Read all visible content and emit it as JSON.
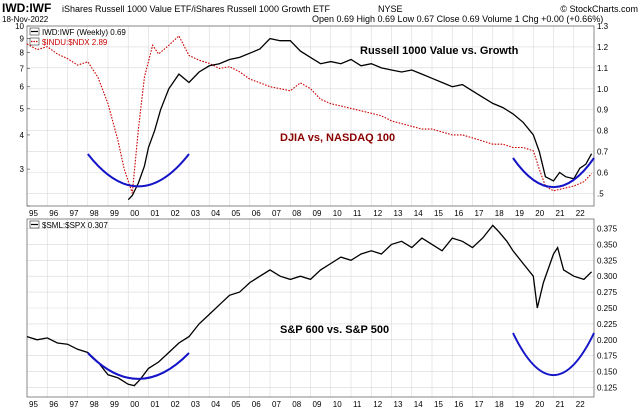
{
  "header": {
    "symbol": "IWD:IWF",
    "description": "iShares Russell 1000 Value ETF/iShares Russell 1000 Growth ETF",
    "exchange": "NYSE",
    "credit": "© StockCharts.com",
    "date": "18-Nov-2022",
    "ohlc": "Open 0.69  High 0.69  Low 0.67  Close 0.69  Volume 1  Chg +0.00 (+0.66%)"
  },
  "x_years": [
    "95",
    "96",
    "97",
    "98",
    "99",
    "00",
    "01",
    "02",
    "03",
    "04",
    "05",
    "06",
    "07",
    "08",
    "09",
    "10",
    "11",
    "12",
    "13",
    "14",
    "15",
    "16",
    "17",
    "18",
    "19",
    "20",
    "21",
    "22"
  ],
  "chart_data": [
    {
      "type": "line",
      "title": "Russell 1000 Value vs. Growth",
      "scale": "log",
      "legend": [
        {
          "label": "IWD:IWF (Weekly) 0.69",
          "color": "#000000",
          "style": "solid"
        },
        {
          "label": "$INDU:$NDX 2.89",
          "color": "#cc0000",
          "style": "dotted"
        }
      ],
      "left_axis": {
        "ylim": [
          2.2,
          10
        ],
        "ticks": [
          2.2,
          3,
          4,
          5,
          6,
          7,
          8,
          9,
          10
        ],
        "tick_labels": [
          "",
          "3",
          "4",
          "5",
          "6",
          "7",
          "8",
          "9",
          "10"
        ]
      },
      "right_axis": {
        "ylim": [
          0.44,
          1.3
        ],
        "ticks": [
          0.5,
          0.6,
          0.7,
          0.8,
          0.9,
          1.0,
          1.1,
          1.2,
          1.3
        ],
        "tick_labels": [
          ".5",
          "0.6",
          "0.7",
          "0.8",
          "0.9",
          "1.0",
          "1.1",
          "1.2",
          "1.3"
        ]
      },
      "series": [
        {
          "name": "IWD:IWF",
          "axis": "right",
          "x": [
            2000.0,
            2000.2,
            2000.5,
            2000.8,
            2001.0,
            2001.3,
            2001.6,
            2002.0,
            2002.5,
            2003.0,
            2003.5,
            2004.0,
            2004.5,
            2005.0,
            2005.5,
            2006.0,
            2006.5,
            2007.0,
            2007.5,
            2008.0,
            2008.5,
            2009.0,
            2009.5,
            2010.0,
            2010.5,
            2011.0,
            2011.5,
            2012.0,
            2012.5,
            2013.0,
            2013.5,
            2014.0,
            2014.5,
            2015.0,
            2015.5,
            2016.0,
            2016.5,
            2017.0,
            2017.5,
            2018.0,
            2018.5,
            2019.0,
            2019.5,
            2020.0,
            2020.3,
            2020.6,
            2021.0,
            2021.3,
            2021.6,
            2022.0,
            2022.3,
            2022.6,
            2022.88
          ],
          "values": [
            0.47,
            0.49,
            0.55,
            0.63,
            0.72,
            0.8,
            0.9,
            1.0,
            1.07,
            1.03,
            1.08,
            1.11,
            1.12,
            1.14,
            1.15,
            1.17,
            1.19,
            1.24,
            1.23,
            1.23,
            1.18,
            1.15,
            1.12,
            1.13,
            1.12,
            1.14,
            1.11,
            1.12,
            1.1,
            1.09,
            1.08,
            1.09,
            1.07,
            1.05,
            1.03,
            1.01,
            1.02,
            0.99,
            0.96,
            0.93,
            0.91,
            0.88,
            0.84,
            0.78,
            0.7,
            0.58,
            0.56,
            0.6,
            0.58,
            0.57,
            0.62,
            0.64,
            0.69
          ]
        },
        {
          "name": "$INDU:$NDX",
          "axis": "left",
          "x": [
            1995.0,
            1995.5,
            1996.0,
            1996.5,
            1997.0,
            1997.5,
            1998.0,
            1998.5,
            1999.0,
            1999.5,
            1999.8,
            2000.2,
            2000.5,
            2000.8,
            2001.2,
            2001.5,
            2002.0,
            2002.5,
            2003.0,
            2003.5,
            2004.0,
            2004.5,
            2005.0,
            2005.5,
            2006.0,
            2006.5,
            2007.0,
            2007.5,
            2008.0,
            2008.5,
            2009.0,
            2009.5,
            2010.0,
            2010.5,
            2011.0,
            2011.5,
            2012.0,
            2012.5,
            2013.0,
            2013.5,
            2014.0,
            2014.5,
            2015.0,
            2015.5,
            2016.0,
            2016.5,
            2017.0,
            2017.5,
            2018.0,
            2018.5,
            2019.0,
            2019.5,
            2020.0,
            2020.3,
            2020.6,
            2021.0,
            2021.5,
            2022.0,
            2022.5,
            2022.88
          ],
          "values": [
            8.6,
            8.2,
            8.4,
            7.9,
            7.6,
            7.2,
            7.4,
            6.5,
            5.2,
            3.8,
            3.0,
            2.45,
            4.2,
            6.5,
            8.5,
            7.9,
            8.5,
            9.2,
            7.8,
            7.5,
            7.3,
            7.0,
            7.1,
            6.8,
            6.4,
            6.2,
            6.0,
            5.9,
            5.8,
            6.2,
            5.9,
            5.4,
            5.2,
            5.1,
            5.0,
            4.9,
            4.8,
            4.7,
            4.5,
            4.4,
            4.3,
            4.2,
            4.2,
            4.1,
            4.0,
            4.0,
            3.9,
            3.8,
            3.7,
            3.7,
            3.6,
            3.6,
            3.5,
            3.0,
            2.6,
            2.5,
            2.55,
            2.6,
            2.7,
            2.89
          ]
        }
      ],
      "annotations": [
        {
          "text": "Russell 1000 Value vs. Growth",
          "color": "#000000"
        },
        {
          "text": "DJIA vs, NASDAQ 100",
          "color": "#8b0000"
        }
      ],
      "highlights": [
        {
          "shape": "U",
          "x_range": [
            1998.0,
            2003.0
          ],
          "color": "#1414c8"
        },
        {
          "shape": "U",
          "x_range": [
            2019.0,
            2023.0
          ],
          "color": "#1414c8"
        }
      ]
    },
    {
      "type": "line",
      "title": "S&P 600 vs. S&P 500",
      "legend": [
        {
          "label": "$SML:$SPX 0.307",
          "color": "#000000",
          "style": "solid"
        }
      ],
      "right_axis": {
        "ylim": [
          0.11,
          0.39
        ],
        "ticks": [
          0.125,
          0.15,
          0.175,
          0.2,
          0.225,
          0.25,
          0.275,
          0.3,
          0.325,
          0.35,
          0.375
        ],
        "tick_labels": [
          "0.125",
          "0.150",
          "0.175",
          "0.200",
          "0.225",
          "0.250",
          "0.275",
          "0.300",
          "0.325",
          "0.350",
          "0.375"
        ]
      },
      "series": [
        {
          "name": "$SML:$SPX",
          "axis": "right",
          "x": [
            1995.0,
            1995.5,
            1996.0,
            1996.5,
            1997.0,
            1997.5,
            1998.0,
            1998.5,
            1999.0,
            1999.5,
            2000.0,
            2000.3,
            2000.6,
            2001.0,
            2001.5,
            2002.0,
            2002.5,
            2003.0,
            2003.5,
            2004.0,
            2004.5,
            2005.0,
            2005.5,
            2006.0,
            2006.5,
            2007.0,
            2007.5,
            2008.0,
            2008.5,
            2009.0,
            2009.5,
            2010.0,
            2010.5,
            2011.0,
            2011.5,
            2012.0,
            2012.5,
            2013.0,
            2013.5,
            2014.0,
            2014.5,
            2015.0,
            2015.5,
            2016.0,
            2016.5,
            2017.0,
            2017.5,
            2018.0,
            2018.3,
            2018.7,
            2019.0,
            2019.5,
            2020.0,
            2020.2,
            2020.5,
            2021.0,
            2021.2,
            2021.5,
            2022.0,
            2022.5,
            2022.88
          ],
          "values": [
            0.205,
            0.2,
            0.203,
            0.195,
            0.193,
            0.185,
            0.18,
            0.165,
            0.145,
            0.14,
            0.13,
            0.128,
            0.138,
            0.155,
            0.165,
            0.18,
            0.195,
            0.205,
            0.225,
            0.24,
            0.255,
            0.27,
            0.275,
            0.29,
            0.3,
            0.31,
            0.3,
            0.295,
            0.3,
            0.295,
            0.31,
            0.32,
            0.33,
            0.325,
            0.335,
            0.34,
            0.335,
            0.35,
            0.355,
            0.345,
            0.36,
            0.35,
            0.34,
            0.36,
            0.355,
            0.345,
            0.36,
            0.38,
            0.37,
            0.355,
            0.34,
            0.32,
            0.3,
            0.25,
            0.29,
            0.335,
            0.345,
            0.31,
            0.3,
            0.295,
            0.307
          ]
        }
      ],
      "annotations": [
        {
          "text": "S&P 600 vs. S&P 500",
          "color": "#000000"
        }
      ],
      "highlights": [
        {
          "shape": "U",
          "x_range": [
            1998.0,
            2003.0
          ],
          "color": "#1414c8"
        },
        {
          "shape": "U",
          "x_range": [
            2019.0,
            2023.0
          ],
          "color": "#1414c8"
        }
      ]
    }
  ]
}
